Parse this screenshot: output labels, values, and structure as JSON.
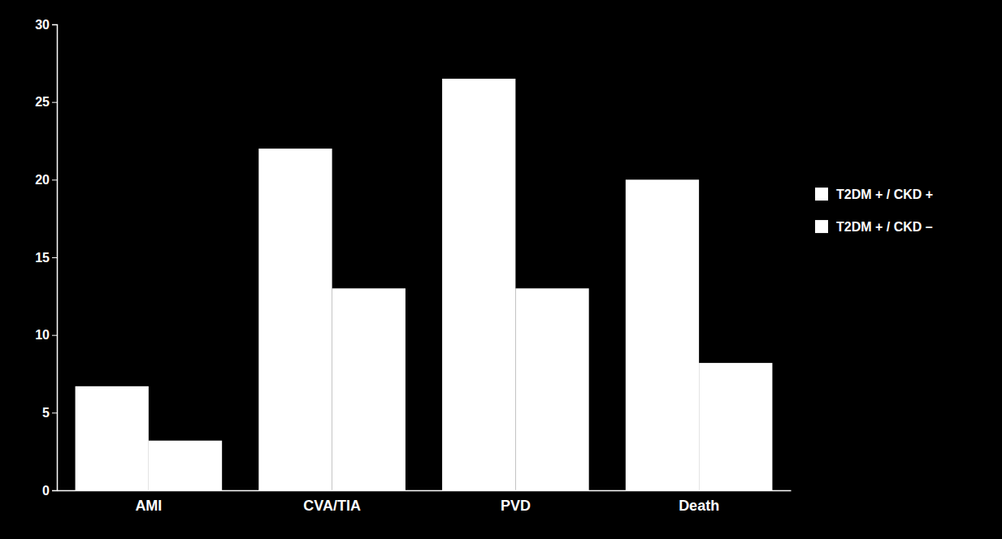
{
  "chart_data": {
    "type": "bar",
    "categories": [
      "AMI",
      "CVA/TIA",
      "PVD",
      "Death"
    ],
    "series": [
      {
        "name": "T2DM + / CKD +",
        "color": "#ffffff",
        "values": [
          6.7,
          22.0,
          26.5,
          20.0
        ]
      },
      {
        "name": "T2DM + / CKD –",
        "color": "#ffffff",
        "values": [
          3.2,
          13.0,
          13.0,
          8.2
        ]
      }
    ],
    "ylim": [
      0,
      30
    ],
    "yticks": [
      0,
      5,
      10,
      15,
      20,
      25,
      30
    ],
    "grid": false,
    "legend": "right"
  }
}
